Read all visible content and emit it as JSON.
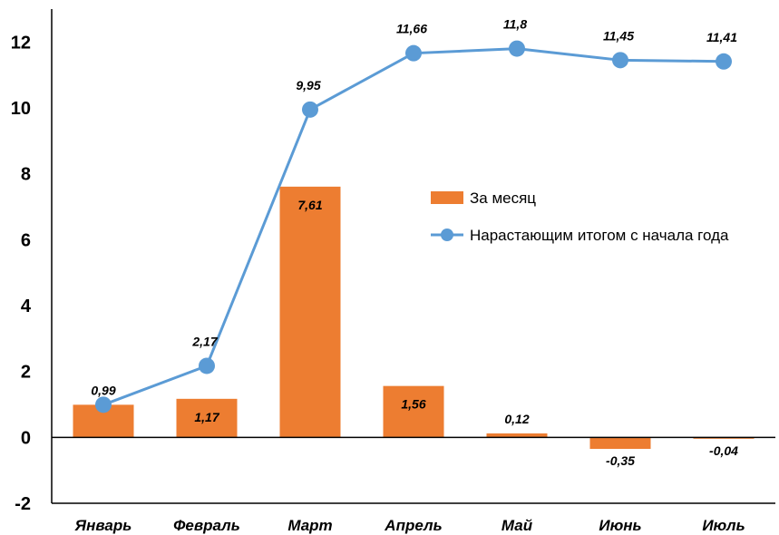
{
  "chart_data": {
    "type": "bar",
    "categories": [
      "Январь",
      "Февраль",
      "Март",
      "Апрель",
      "Май",
      "Июнь",
      "Июль"
    ],
    "series": [
      {
        "name": "За месяц",
        "type": "bar",
        "color": "#ED7D31",
        "values": [
          0.99,
          1.17,
          7.61,
          1.56,
          0.12,
          -0.35,
          -0.04
        ],
        "labels": [
          "0,99",
          "1,17",
          "7,61",
          "1,56",
          "0,12",
          "-0,35",
          "-0,04"
        ]
      },
      {
        "name": "Нарастающим итогом с начала года",
        "type": "line",
        "color": "#5B9BD5",
        "values": [
          0.99,
          2.17,
          9.95,
          11.66,
          11.8,
          11.45,
          11.41
        ],
        "labels": [
          "",
          "2,17",
          "9,95",
          "11,66",
          "11,8",
          "11,45",
          "11,41"
        ]
      }
    ],
    "ylim": [
      -2,
      13
    ],
    "yticks": [
      -2,
      0,
      2,
      4,
      6,
      8,
      10,
      12
    ],
    "ytick_labels": [
      "-2",
      "0",
      "2",
      "4",
      "6",
      "8",
      "10",
      "12"
    ],
    "legend": "right",
    "grid": false
  }
}
